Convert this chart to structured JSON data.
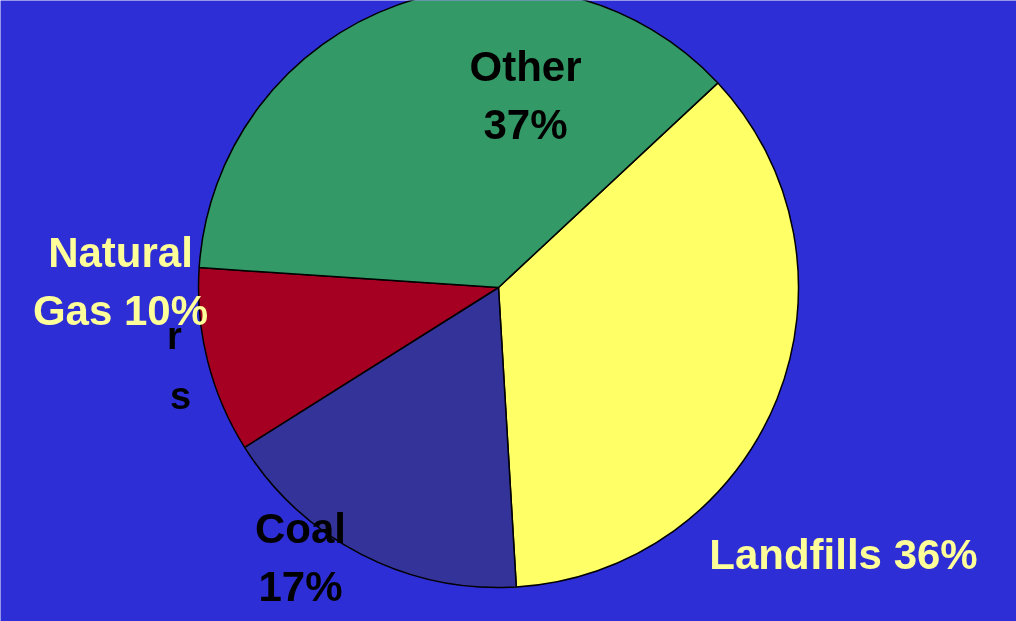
{
  "chart_data": {
    "type": "pie",
    "categories": [
      "Landfills",
      "Coal",
      "Natural Gas",
      "Other"
    ],
    "values": [
      36,
      17,
      10,
      37
    ],
    "value_labels": [
      "36%",
      "17%",
      "10%",
      "37%"
    ],
    "colors": [
      "#ffff66",
      "#333399",
      "#a50021",
      "#339966"
    ],
    "annotations": [
      "r",
      "s"
    ]
  }
}
